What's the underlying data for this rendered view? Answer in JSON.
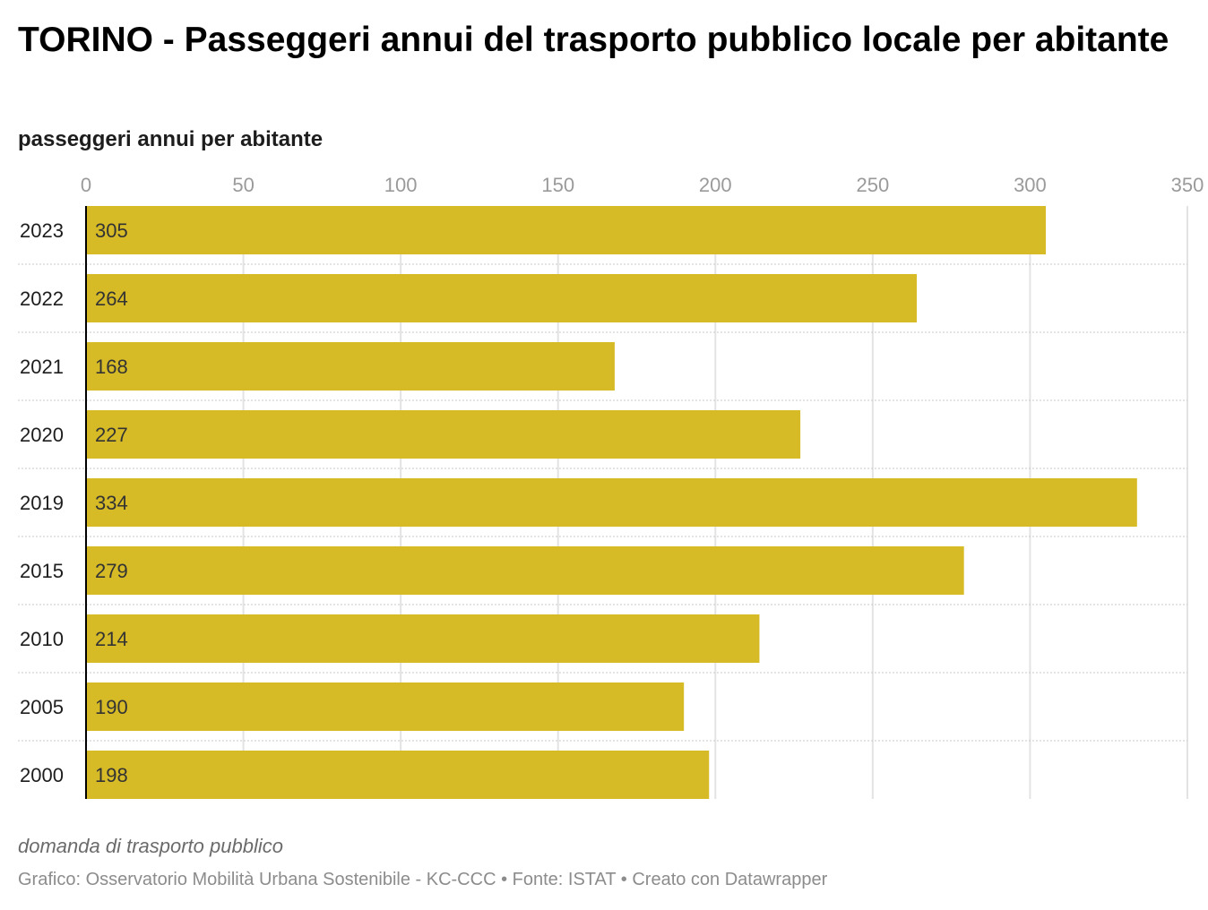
{
  "chart_data": {
    "type": "bar",
    "orientation": "horizontal",
    "title": "TORINO - Passeggeri annui del trasporto pubblico locale per abitante",
    "subtitle": "passeggeri annui per abitante",
    "categories": [
      "2023",
      "2022",
      "2021",
      "2020",
      "2019",
      "2015",
      "2010",
      "2005",
      "2000"
    ],
    "values": [
      305,
      264,
      168,
      227,
      334,
      279,
      214,
      190,
      198
    ],
    "value_labels": [
      "305",
      "264",
      "168",
      "227",
      "334",
      "279",
      "214",
      "190",
      "198"
    ],
    "xlim": [
      0,
      350
    ],
    "x_ticks": [
      0,
      50,
      100,
      150,
      200,
      250,
      300,
      350
    ],
    "x_tick_labels": [
      "0",
      "50",
      "100",
      "150",
      "200",
      "250",
      "300",
      "350"
    ],
    "x_axis_position": "top",
    "grid": true,
    "bar_color": "#d6bb27",
    "note": "domanda di trasporto pubblico",
    "footer": "Grafico: Osservatorio Mobilità Urbana Sostenibile - KC-CCC • Fonte: ISTAT • Creato con Datawrapper"
  }
}
